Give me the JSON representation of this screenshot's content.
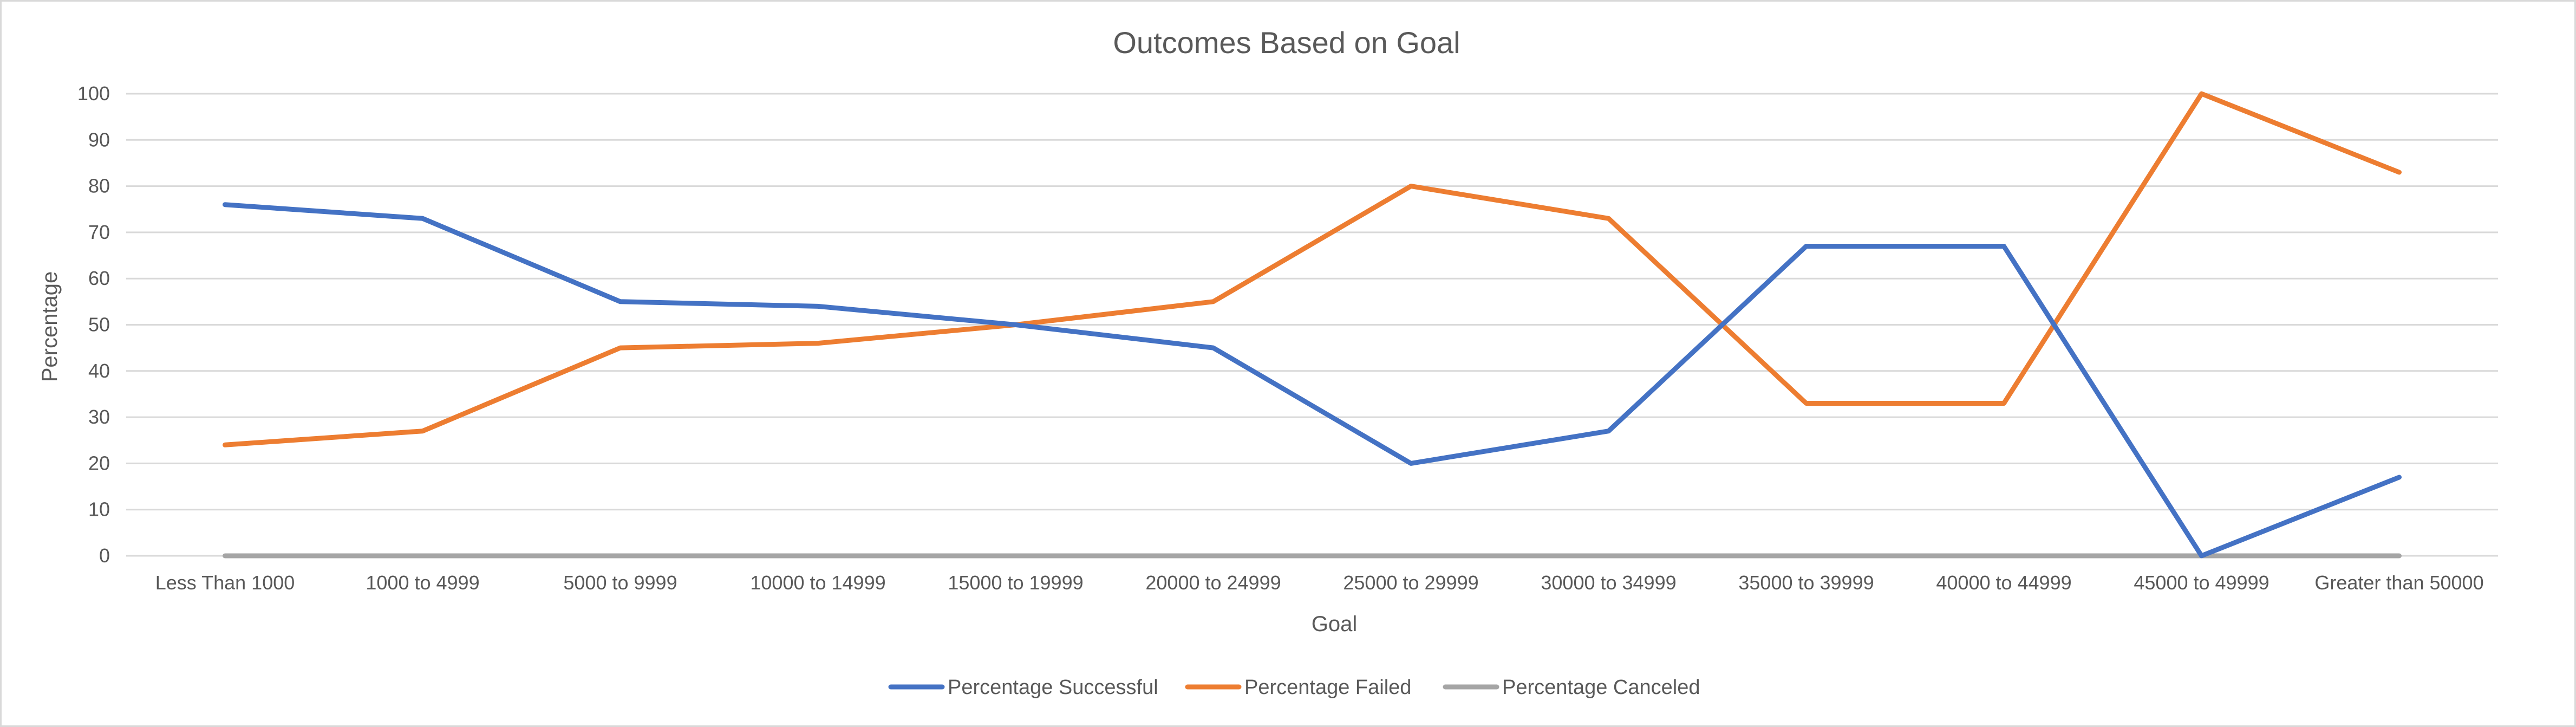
{
  "chart_data": {
    "type": "line",
    "title": "Outcomes Based on Goal",
    "xlabel": "Goal",
    "ylabel": "Percentage",
    "ylim": [
      0,
      100
    ],
    "yticks": [
      0,
      10,
      20,
      30,
      40,
      50,
      60,
      70,
      80,
      90,
      100
    ],
    "grid": true,
    "legend_position": "bottom",
    "categories": [
      "Less Than 1000",
      "1000 to 4999",
      "5000 to 9999",
      "10000 to 14999",
      "15000 to 19999",
      "20000 to 24999",
      "25000 to 29999",
      "30000 to 34999",
      "35000 to 39999",
      "40000 to 44999",
      "45000 to 49999",
      "Greater than 50000"
    ],
    "series": [
      {
        "name": "Percentage Successful",
        "color": "#4472c4",
        "values": [
          76,
          73,
          55,
          54,
          50,
          45,
          20,
          27,
          67,
          67,
          0,
          17
        ]
      },
      {
        "name": "Percentage Failed",
        "color": "#ed7d31",
        "values": [
          24,
          27,
          45,
          46,
          50,
          55,
          80,
          73,
          33,
          33,
          100,
          83
        ]
      },
      {
        "name": "Percentage Canceled",
        "color": "#a5a5a5",
        "values": [
          0,
          0,
          0,
          0,
          0,
          0,
          0,
          0,
          0,
          0,
          0,
          0
        ]
      }
    ]
  }
}
